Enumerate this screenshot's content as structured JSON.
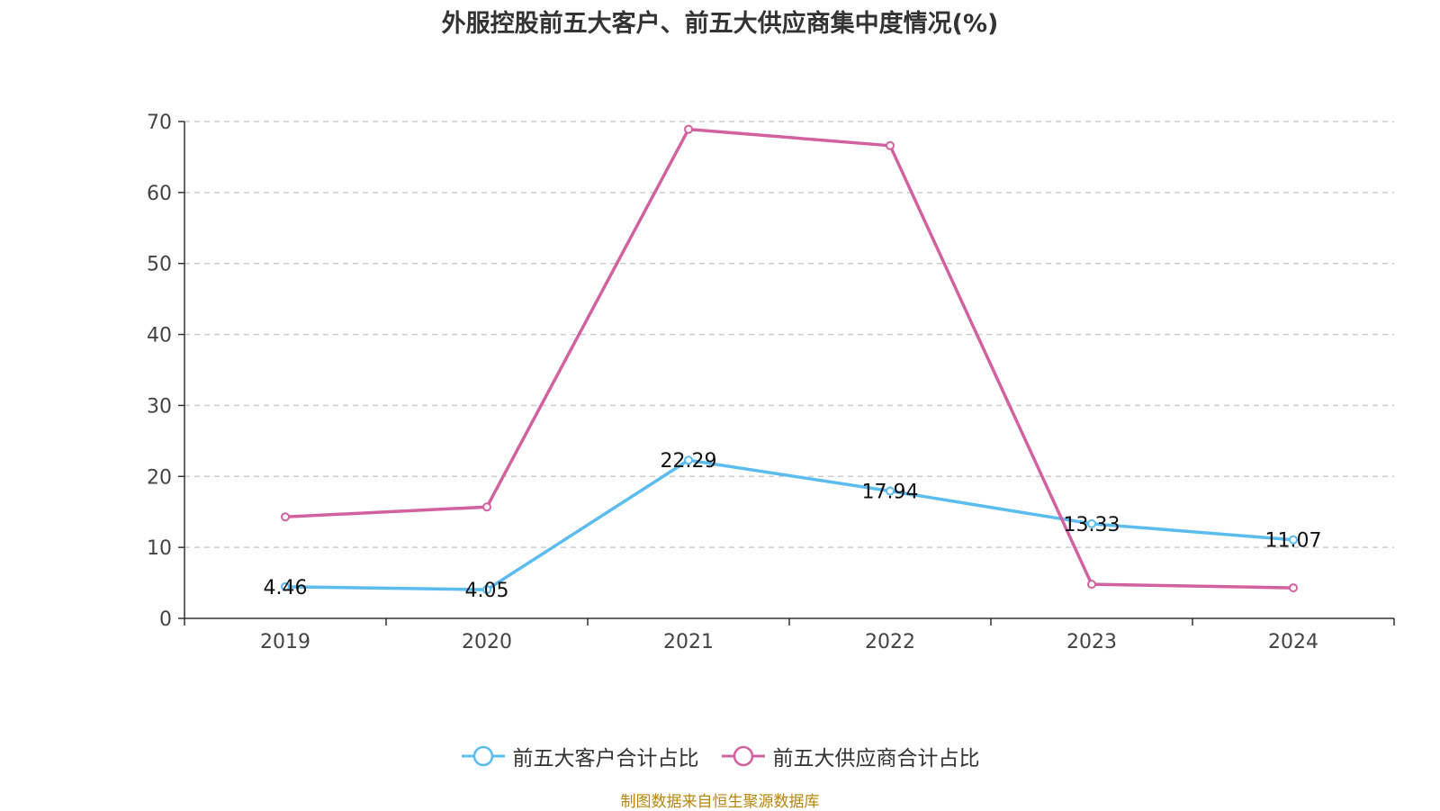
{
  "title": "外服控股前五大客户、前五大供应商集中度情况(%)",
  "source": "制图数据来自恒生聚源数据库",
  "chart_data": {
    "type": "line",
    "title": "外服控股前五大客户、前五大供应商集中度情况(%)",
    "categories": [
      "2019",
      "2020",
      "2021",
      "2022",
      "2023",
      "2024"
    ],
    "ylim": [
      0,
      70
    ],
    "yticks": [
      0,
      10,
      20,
      30,
      40,
      50,
      60,
      70
    ],
    "grid": true,
    "legend_position": "bottom",
    "series": [
      {
        "name": "前五大客户合计占比",
        "color": "#5bbcf0",
        "values": [
          4.46,
          4.05,
          22.29,
          17.94,
          13.33,
          11.07
        ],
        "labels": [
          "4.46",
          "4.05",
          "22.29",
          "17.94",
          "13.33",
          "11.07"
        ],
        "show_labels": true
      },
      {
        "name": "前五大供应商合计占比",
        "color": "#d2629f",
        "values": [
          14.3,
          15.7,
          68.9,
          66.6,
          4.8,
          4.3
        ],
        "show_labels": false
      }
    ]
  }
}
